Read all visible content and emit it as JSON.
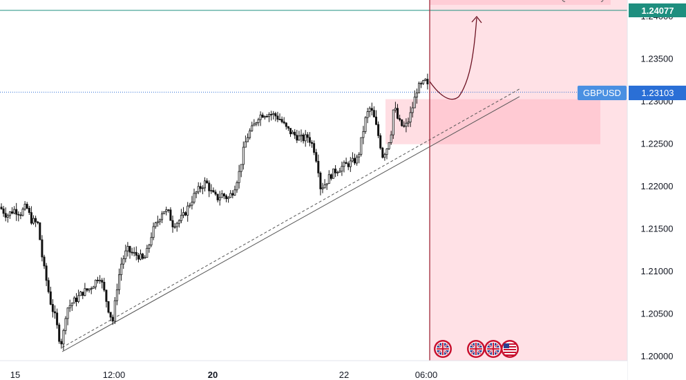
{
  "chart_data": {
    "type": "candlestick",
    "symbol": "GBPUSD",
    "current_price": "1.23103",
    "target_price": "1.24077",
    "y_axis": {
      "min": 1.2,
      "max": 1.2407,
      "ticks": [
        "1.24000",
        "1.23500",
        "1.23000",
        "1.22500",
        "1.22000",
        "1.21500",
        "1.21000",
        "1.20500",
        "1.20000"
      ]
    },
    "x_axis": {
      "ticks": [
        {
          "label": "15",
          "bold": false
        },
        {
          "label": "12:00",
          "bold": false
        },
        {
          "label": "20",
          "bold": true
        },
        {
          "label": "22",
          "bold": false
        },
        {
          "label": "06:00",
          "bold": false
        }
      ]
    },
    "price_path": [
      [
        0,
        1.2175
      ],
      [
        10,
        1.2165
      ],
      [
        20,
        1.2172
      ],
      [
        30,
        1.2168
      ],
      [
        38,
        1.2176
      ],
      [
        45,
        1.216
      ],
      [
        55,
        1.2155
      ],
      [
        62,
        1.211
      ],
      [
        68,
        1.2085
      ],
      [
        74,
        1.206
      ],
      [
        80,
        1.2045
      ],
      [
        86,
        1.202
      ],
      [
        90,
        1.2015
      ],
      [
        96,
        1.2055
      ],
      [
        104,
        1.2062
      ],
      [
        112,
        1.2068
      ],
      [
        120,
        1.2075
      ],
      [
        128,
        1.2078
      ],
      [
        136,
        1.2085
      ],
      [
        144,
        1.2095
      ],
      [
        150,
        1.2078
      ],
      [
        157,
        1.2055
      ],
      [
        163,
        1.204
      ],
      [
        170,
        1.2085
      ],
      [
        176,
        1.211
      ],
      [
        184,
        1.2125
      ],
      [
        192,
        1.212
      ],
      [
        200,
        1.2118
      ],
      [
        208,
        1.2112
      ],
      [
        214,
        1.2125
      ],
      [
        220,
        1.2145
      ],
      [
        228,
        1.2158
      ],
      [
        236,
        1.2172
      ],
      [
        244,
        1.2168
      ],
      [
        250,
        1.2155
      ],
      [
        258,
        1.2158
      ],
      [
        266,
        1.2165
      ],
      [
        274,
        1.2178
      ],
      [
        282,
        1.219
      ],
      [
        290,
        1.2198
      ],
      [
        298,
        1.2205
      ],
      [
        306,
        1.2192
      ],
      [
        314,
        1.2185
      ],
      [
        322,
        1.219
      ],
      [
        330,
        1.2185
      ],
      [
        338,
        1.2195
      ],
      [
        346,
        1.2215
      ],
      [
        354,
        1.2248
      ],
      [
        360,
        1.2262
      ],
      [
        366,
        1.2268
      ],
      [
        374,
        1.2282
      ],
      [
        382,
        1.2285
      ],
      [
        390,
        1.2285
      ],
      [
        398,
        1.2283
      ],
      [
        406,
        1.2278
      ],
      [
        414,
        1.2268
      ],
      [
        422,
        1.2262
      ],
      [
        430,
        1.2258
      ],
      [
        438,
        1.2255
      ],
      [
        446,
        1.2258
      ],
      [
        454,
        1.2245
      ],
      [
        460,
        1.2225
      ],
      [
        464,
        1.2198
      ],
      [
        470,
        1.2202
      ],
      [
        478,
        1.2212
      ],
      [
        486,
        1.2218
      ],
      [
        494,
        1.2222
      ],
      [
        502,
        1.2225
      ],
      [
        510,
        1.2228
      ],
      [
        518,
        1.2232
      ],
      [
        524,
        1.2258
      ],
      [
        530,
        1.2282
      ],
      [
        536,
        1.2292
      ],
      [
        542,
        1.2278
      ],
      [
        548,
        1.2258
      ],
      [
        554,
        1.2235
      ],
      [
        560,
        1.2245
      ],
      [
        566,
        1.2262
      ],
      [
        570,
        1.2295
      ],
      [
        576,
        1.2278
      ],
      [
        580,
        1.2272
      ],
      [
        586,
        1.2268
      ],
      [
        592,
        1.2278
      ],
      [
        598,
        1.2295
      ],
      [
        604,
        1.2315
      ],
      [
        610,
        1.2318
      ],
      [
        616,
        1.2323
      ],
      [
        622,
        1.231
      ]
    ],
    "annotations": {
      "trendline": {
        "from": [
          90,
          1.2
        ],
        "to": [
          752,
          1.2305
        ],
        "style": "solid"
      },
      "trendline_offset": {
        "from": [
          90,
          1.2005
        ],
        "to": [
          752,
          1.2314
        ],
        "style": "dashed"
      },
      "vertical_line_x": 622,
      "support_zone": {
        "y_top": 1.2302,
        "y_bottom": 1.2249
      },
      "projection": "rebound from trendline then rise to 1.24077"
    }
  }
}
